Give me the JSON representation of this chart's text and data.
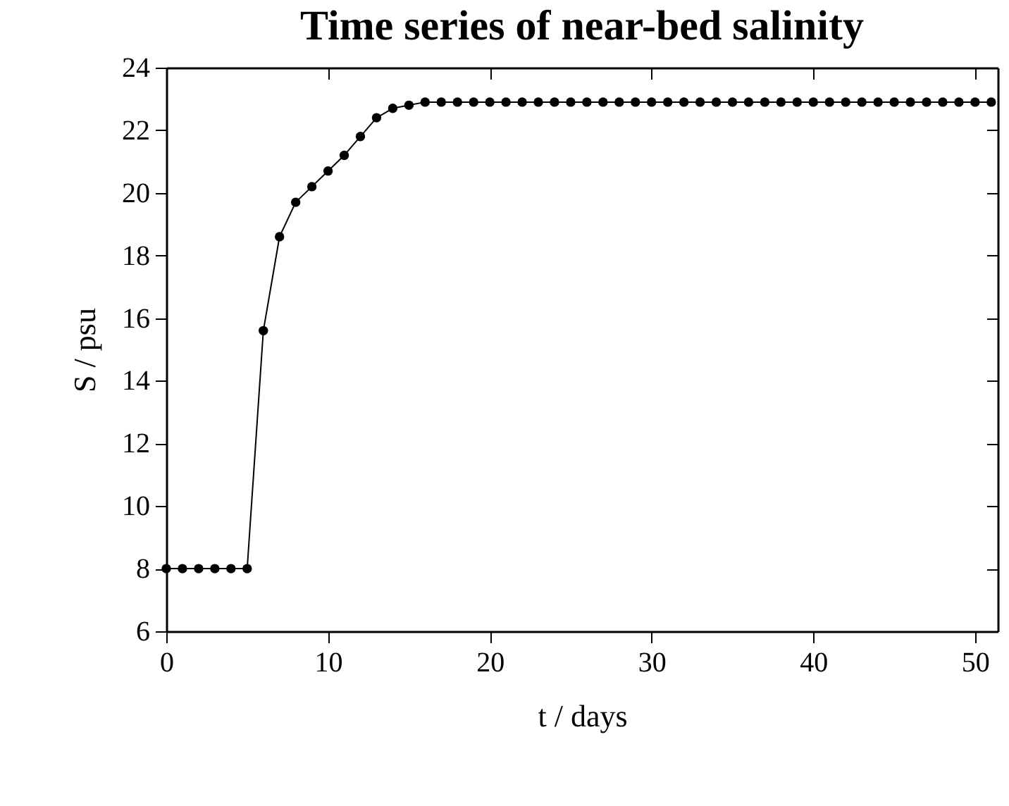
{
  "chart_data": {
    "type": "line",
    "title": "Time series of near-bed salinity",
    "xlabel": "t / days",
    "ylabel": "S / psu",
    "x": [
      0,
      1,
      2,
      3,
      4,
      5,
      6,
      7,
      8,
      9,
      10,
      11,
      12,
      13,
      14,
      15,
      16,
      17,
      18,
      19,
      20,
      21,
      22,
      23,
      24,
      25,
      26,
      27,
      28,
      29,
      30,
      31,
      32,
      33,
      34,
      35,
      36,
      37,
      38,
      39,
      40,
      41,
      42,
      43,
      44,
      45,
      46,
      47,
      48,
      49,
      50,
      51
    ],
    "series": [
      {
        "color": "#000000",
        "values": [
          8,
          8,
          8,
          8,
          8,
          8,
          15.6,
          18.6,
          19.7,
          20.2,
          20.7,
          21.2,
          21.8,
          22.4,
          22.7,
          22.8,
          22.9,
          22.9,
          22.9,
          22.9,
          22.9,
          22.9,
          22.9,
          22.9,
          22.9,
          22.9,
          22.9,
          22.9,
          22.9,
          22.9,
          22.9,
          22.9,
          22.9,
          22.9,
          22.9,
          22.9,
          22.9,
          22.9,
          22.9,
          22.9,
          22.9,
          22.9,
          22.9,
          22.9,
          22.9,
          22.9,
          22.9,
          22.9,
          22.9,
          22.9,
          22.9,
          22.9
        ]
      }
    ],
    "xlim": [
      0,
      51.4
    ],
    "xticks": [
      0,
      10,
      20,
      30,
      40,
      50
    ],
    "ylim": [
      6,
      24
    ],
    "yticks": [
      6,
      8,
      10,
      12,
      14,
      16,
      18,
      20,
      22,
      24
    ],
    "marker": "circle",
    "line_style": "solid",
    "grid": false
  }
}
